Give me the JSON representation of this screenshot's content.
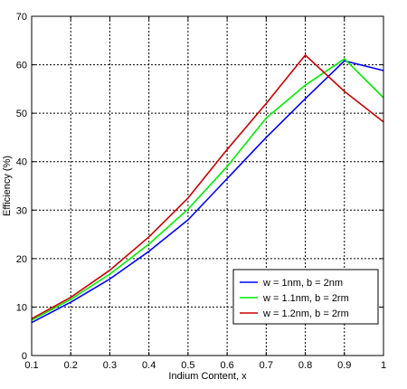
{
  "chart_data": {
    "type": "line",
    "title": "",
    "xlabel": "Indium Content, x",
    "ylabel": "Efficiency (%)",
    "xlim": [
      0.1,
      1
    ],
    "ylim": [
      0,
      70
    ],
    "x_ticks": [
      "0.1",
      "0.2",
      "0.3",
      "0.4",
      "0.5",
      "0.6",
      "0.7",
      "0.8",
      "0.9",
      "1"
    ],
    "y_ticks": [
      "0",
      "10",
      "20",
      "30",
      "40",
      "50",
      "60",
      "70"
    ],
    "grid": true,
    "legend_position": "lower-right",
    "series": [
      {
        "name": "w = 1nm, b = 2nm",
        "color": "#0000ff",
        "x": [
          0.1,
          0.2,
          0.3,
          0.4,
          0.5,
          0.6,
          0.7,
          0.8,
          0.9,
          1.0
        ],
        "y": [
          6.8,
          11.0,
          15.8,
          21.5,
          28.0,
          36.5,
          45.0,
          53.0,
          60.8,
          58.8
        ]
      },
      {
        "name": "w = 1.1nm, b = 2rm",
        "color": "#00ee00",
        "x": [
          0.1,
          0.2,
          0.3,
          0.4,
          0.5,
          0.6,
          0.7,
          0.8,
          0.9,
          1.0
        ],
        "y": [
          7.3,
          11.6,
          16.8,
          23.0,
          30.2,
          39.0,
          49.0,
          55.8,
          61.2,
          53.2
        ]
      },
      {
        "name": "w = 1.2nm, b = 2rm",
        "color": "#cc0000",
        "x": [
          0.1,
          0.2,
          0.3,
          0.4,
          0.5,
          0.6,
          0.7,
          0.8,
          0.9,
          1.0
        ],
        "y": [
          7.6,
          12.0,
          17.6,
          24.5,
          32.5,
          42.5,
          52.0,
          62.0,
          54.5,
          48.2
        ]
      }
    ]
  }
}
